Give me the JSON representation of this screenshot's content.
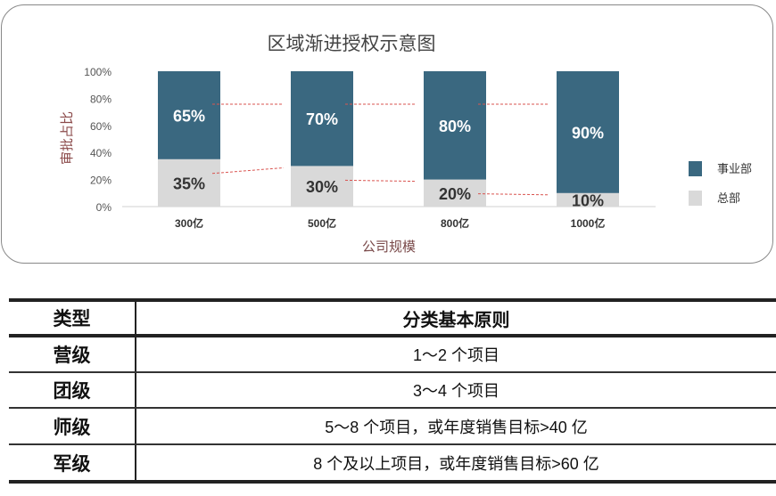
{
  "chart_data": {
    "type": "bar",
    "stacked": true,
    "title": "区域渐进授权示意图",
    "xlabel": "公司规模",
    "ylabel": "审批占比",
    "categories": [
      "300亿",
      "500亿",
      "800亿",
      "1000亿"
    ],
    "ylim": [
      0,
      100
    ],
    "yticks": [
      "0%",
      "20%",
      "40%",
      "60%",
      "80%",
      "100%"
    ],
    "series": [
      {
        "name": "总部",
        "values": [
          35,
          30,
          20,
          10
        ],
        "labels": [
          "35%",
          "30%",
          "20%",
          "10%"
        ],
        "color": "#d9d9d9"
      },
      {
        "name": "事业部",
        "values": [
          65,
          70,
          80,
          90
        ],
        "labels": [
          "65%",
          "70%",
          "80%",
          "90%"
        ],
        "color": "#3a6880"
      }
    ],
    "legend": "right",
    "legend_order": [
      "事业部",
      "总部"
    ],
    "trend_line_color": "#d9534f"
  },
  "table": {
    "headers": [
      "类型",
      "分类基本原则"
    ],
    "rows": [
      [
        "营级",
        "1～2 个项目"
      ],
      [
        "团级",
        "3～4 个项目"
      ],
      [
        "师级",
        "5～8 个项目，或年度销售目标>40 亿"
      ],
      [
        "军级",
        "8 个及以上项目，或年度销售目标>60 亿"
      ]
    ]
  }
}
